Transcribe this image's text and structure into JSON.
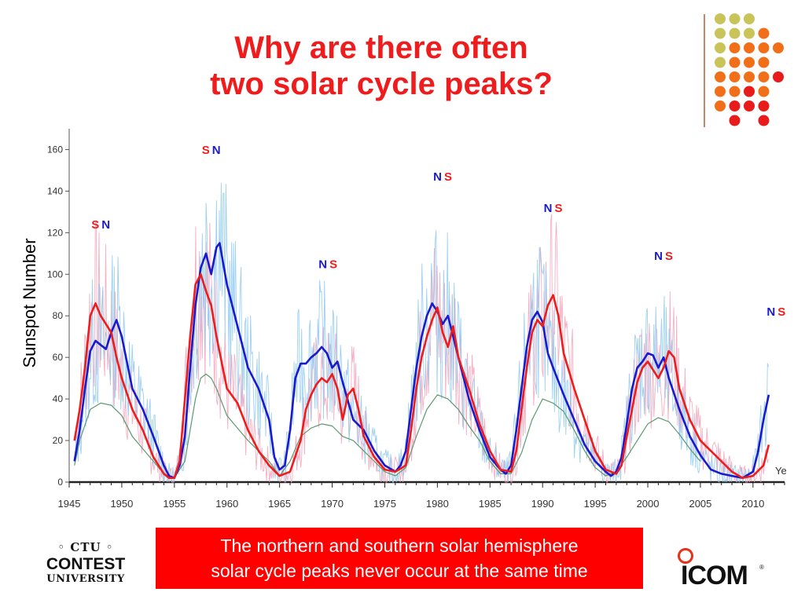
{
  "slide": {
    "title_line1": "Why are there often",
    "title_line2": "two solar cycle peaks?",
    "callout_line1": "The northern and southern solar hemisphere",
    "callout_line2": "solar cycle peaks never occur at the same time",
    "logo_left": {
      "top": "◦ CTU ◦",
      "middle": "CONTEST",
      "bottom": "UNIVERSITY"
    },
    "logo_right": {
      "text": "ICOM",
      "tm": "®"
    },
    "decor_colors": {
      "olive": "#c8c45a",
      "orange": "#f26f1a",
      "red": "#e81a1a"
    }
  },
  "chart_data": {
    "type": "line",
    "ylabel": "Sunspot Number",
    "xlim": [
      1945,
      2013
    ],
    "ylim": [
      0,
      170
    ],
    "x_ticks": [
      1945,
      1950,
      1955,
      1960,
      1965,
      1970,
      1975,
      1980,
      1985,
      1990,
      1995,
      2000,
      2005,
      2010
    ],
    "y_ticks": [
      0,
      20,
      40,
      60,
      80,
      100,
      120,
      140,
      160
    ],
    "colors": {
      "north": "#1a1acc",
      "south": "#ee1c1c",
      "total": "#5a9a70",
      "north_raw": "#8cc8f0",
      "south_raw": "#f4a0b8"
    },
    "series": [
      {
        "key": "north",
        "x": [
          1945.5,
          1946,
          1946.5,
          1947,
          1947.5,
          1948,
          1948.5,
          1949,
          1949.5,
          1950,
          1951,
          1952,
          1953,
          1954,
          1954.5,
          1955,
          1955.5,
          1956,
          1956.5,
          1957,
          1957.5,
          1958,
          1958.5,
          1959,
          1959.3,
          1960,
          1961,
          1962,
          1963,
          1964,
          1964.5,
          1965,
          1965.5,
          1966,
          1966.5,
          1967,
          1967.5,
          1968,
          1968.5,
          1969,
          1969.5,
          1970,
          1970.5,
          1971,
          1972,
          1973,
          1974,
          1975,
          1976,
          1976.5,
          1977,
          1977.5,
          1978,
          1978.5,
          1979,
          1979.5,
          1980,
          1980.5,
          1981,
          1981.5,
          1982,
          1983,
          1984,
          1985,
          1986,
          1986.5,
          1987,
          1987.5,
          1988,
          1988.5,
          1989,
          1989.5,
          1990,
          1990.5,
          1991,
          1992,
          1993,
          1994,
          1995,
          1996,
          1996.5,
          1997,
          1997.5,
          1998,
          1998.5,
          1999,
          1999.5,
          2000,
          2000.5,
          2001,
          2001.5,
          2002,
          2003,
          2004,
          2005,
          2006,
          2007,
          2008,
          2009,
          2010,
          2010.5,
          2011,
          2011.5
        ],
        "y": [
          10,
          25,
          45,
          63,
          68,
          66,
          64,
          72,
          78,
          70,
          45,
          35,
          22,
          8,
          3,
          2,
          8,
          22,
          55,
          85,
          103,
          110,
          100,
          113,
          115,
          95,
          75,
          55,
          45,
          30,
          12,
          6,
          8,
          25,
          50,
          57,
          57,
          60,
          62,
          65,
          62,
          55,
          58,
          48,
          30,
          25,
          15,
          8,
          5,
          8,
          15,
          35,
          55,
          70,
          80,
          86,
          82,
          76,
          80,
          70,
          60,
          40,
          25,
          12,
          6,
          4,
          8,
          25,
          45,
          65,
          78,
          82,
          77,
          62,
          55,
          42,
          30,
          18,
          10,
          5,
          3,
          5,
          12,
          28,
          45,
          55,
          58,
          62,
          61,
          55,
          60,
          50,
          35,
          22,
          13,
          6,
          4,
          3,
          2,
          5,
          15,
          30,
          42
        ]
      },
      {
        "key": "south",
        "x": [
          1945.5,
          1946,
          1946.5,
          1947,
          1947.5,
          1948,
          1948.5,
          1949,
          1949.5,
          1950,
          1951,
          1952,
          1953,
          1954,
          1954.5,
          1955,
          1955.5,
          1956,
          1956.5,
          1957,
          1957.5,
          1958,
          1958.5,
          1959,
          1960,
          1961,
          1962,
          1963,
          1964,
          1965,
          1966,
          1967,
          1967.5,
          1968,
          1968.5,
          1969,
          1969.5,
          1970,
          1970.5,
          1971,
          1971.5,
          1972,
          1972.5,
          1973,
          1974,
          1975,
          1976,
          1977,
          1977.5,
          1978,
          1978.5,
          1979,
          1979.5,
          1980,
          1980.5,
          1981,
          1981.5,
          1982,
          1983,
          1984,
          1985,
          1986,
          1987,
          1987.5,
          1988,
          1988.5,
          1989,
          1989.5,
          1990,
          1990.5,
          1991,
          1991.5,
          1992,
          1993,
          1994,
          1995,
          1996,
          1997,
          1997.5,
          1998,
          1998.5,
          1999,
          1999.5,
          2000,
          2000.5,
          2001,
          2001.5,
          2002,
          2002.5,
          2003,
          2004,
          2005,
          2006,
          2007,
          2008,
          2009,
          2010,
          2011,
          2011.5
        ],
        "y": [
          20,
          35,
          55,
          80,
          86,
          80,
          76,
          72,
          60,
          50,
          35,
          25,
          12,
          4,
          2,
          2,
          10,
          40,
          70,
          95,
          100,
          92,
          85,
          70,
          45,
          38,
          25,
          15,
          8,
          3,
          5,
          20,
          35,
          42,
          47,
          50,
          48,
          52,
          45,
          30,
          42,
          45,
          35,
          22,
          12,
          6,
          5,
          8,
          25,
          45,
          60,
          70,
          78,
          84,
          72,
          65,
          75,
          60,
          45,
          28,
          15,
          6,
          5,
          15,
          35,
          55,
          72,
          78,
          75,
          85,
          90,
          80,
          62,
          45,
          30,
          15,
          6,
          4,
          8,
          22,
          35,
          48,
          55,
          58,
          54,
          50,
          55,
          63,
          60,
          45,
          30,
          20,
          15,
          10,
          5,
          2,
          3,
          8,
          18
        ]
      },
      {
        "key": "total",
        "x": [
          1945.5,
          1946,
          1947,
          1948,
          1949,
          1950,
          1951,
          1952,
          1953,
          1954,
          1955,
          1956,
          1957,
          1957.5,
          1958,
          1958.5,
          1959,
          1960,
          1961,
          1962,
          1963,
          1964,
          1965,
          1966,
          1967,
          1968,
          1969,
          1970,
          1971,
          1972,
          1973,
          1974,
          1975,
          1976,
          1977,
          1978,
          1979,
          1980,
          1981,
          1982,
          1983,
          1984,
          1985,
          1986,
          1987,
          1988,
          1989,
          1990,
          1991,
          1992,
          1993,
          1994,
          1995,
          1996,
          1997,
          1998,
          1999,
          2000,
          2001,
          2002,
          2003,
          2004,
          2005
        ],
        "y": [
          8,
          20,
          35,
          38,
          37,
          32,
          22,
          16,
          10,
          4,
          2,
          10,
          40,
          50,
          52,
          50,
          45,
          32,
          26,
          20,
          15,
          10,
          3,
          10,
          22,
          26,
          28,
          27,
          22,
          20,
          15,
          10,
          5,
          3,
          7,
          22,
          35,
          42,
          40,
          35,
          27,
          20,
          10,
          4,
          4,
          14,
          30,
          40,
          38,
          34,
          25,
          15,
          7,
          3,
          5,
          12,
          20,
          28,
          31,
          29,
          23,
          16,
          10
        ]
      }
    ],
    "annotations": [
      {
        "x": 1948,
        "y": 122,
        "labels": [
          {
            "text": "S",
            "key": "south"
          },
          {
            "text": "N",
            "key": "north"
          }
        ]
      },
      {
        "x": 1958.5,
        "y": 158,
        "labels": [
          {
            "text": "S",
            "key": "south"
          },
          {
            "text": "N",
            "key": "north"
          }
        ]
      },
      {
        "x": 1969.6,
        "y": 103,
        "labels": [
          {
            "text": "N",
            "key": "north"
          },
          {
            "text": "S",
            "key": "south"
          }
        ]
      },
      {
        "x": 1980.5,
        "y": 145,
        "labels": [
          {
            "text": "N",
            "key": "north"
          },
          {
            "text": "S",
            "key": "south"
          }
        ]
      },
      {
        "x": 1991,
        "y": 130,
        "labels": [
          {
            "text": "N",
            "key": "north"
          },
          {
            "text": "S",
            "key": "south"
          }
        ]
      },
      {
        "x": 2001.5,
        "y": 107,
        "labels": [
          {
            "text": "N",
            "key": "north"
          },
          {
            "text": "S",
            "key": "south"
          }
        ]
      },
      {
        "x": 2012.2,
        "y": 80,
        "labels": [
          {
            "text": "N",
            "key": "north"
          },
          {
            "text": "S",
            "key": "south"
          }
        ]
      }
    ],
    "edge_label": "Ye"
  }
}
